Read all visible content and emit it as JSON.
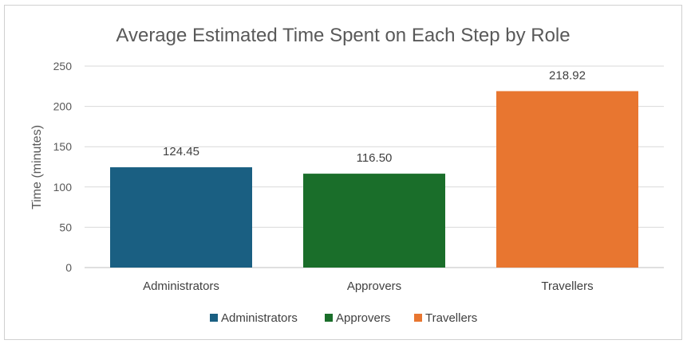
{
  "chart_data": {
    "type": "bar",
    "title": "Average Estimated Time Spent on Each Step by Role",
    "xlabel": "",
    "ylabel": "Time (minutes)",
    "categories": [
      "Administrators",
      "Approvers",
      "Travellers"
    ],
    "values": [
      124.45,
      116.5,
      218.92
    ],
    "value_labels": [
      "124.45",
      "116.50",
      "218.92"
    ],
    "ylim": [
      0,
      250
    ],
    "y_ticks": [
      0,
      50,
      100,
      150,
      200,
      250
    ],
    "colors": [
      "#1a5f82",
      "#1a6e2a",
      "#e87630"
    ],
    "grid": true,
    "legend": {
      "position": "bottom",
      "entries": [
        "Administrators",
        "Approvers",
        "Travellers"
      ]
    }
  }
}
